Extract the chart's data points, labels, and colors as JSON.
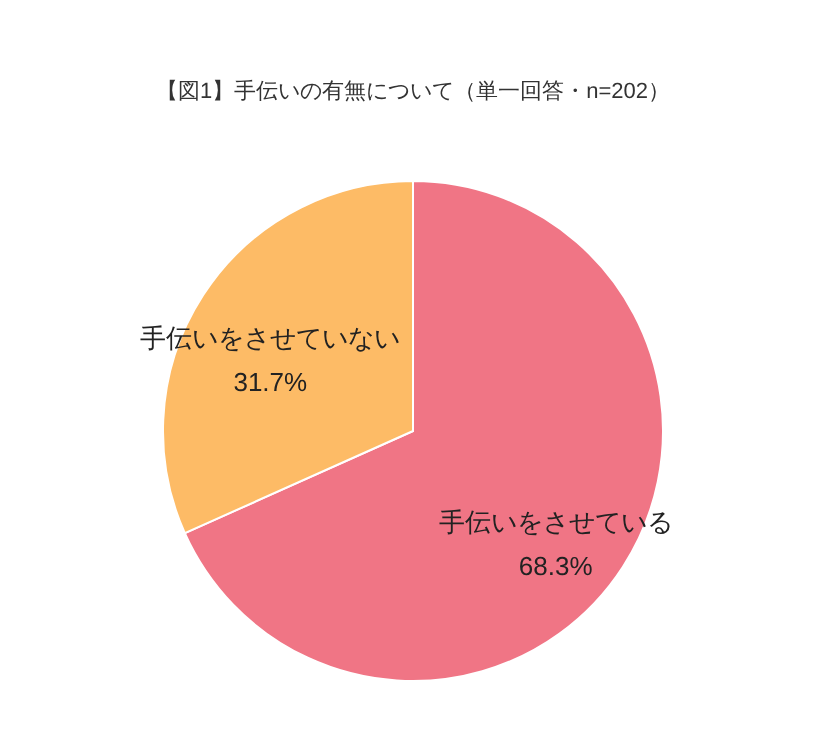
{
  "chart_data": {
    "type": "pie",
    "title": "【図1】手伝いの有無について（単一回答・n=202）",
    "categories": [
      "手伝いをさせている",
      "手伝いをさせていない"
    ],
    "values": [
      68.3,
      31.7
    ],
    "value_labels": [
      "68.3%",
      "31.7%"
    ],
    "colors": [
      "#f07585",
      "#fdbb66"
    ]
  }
}
